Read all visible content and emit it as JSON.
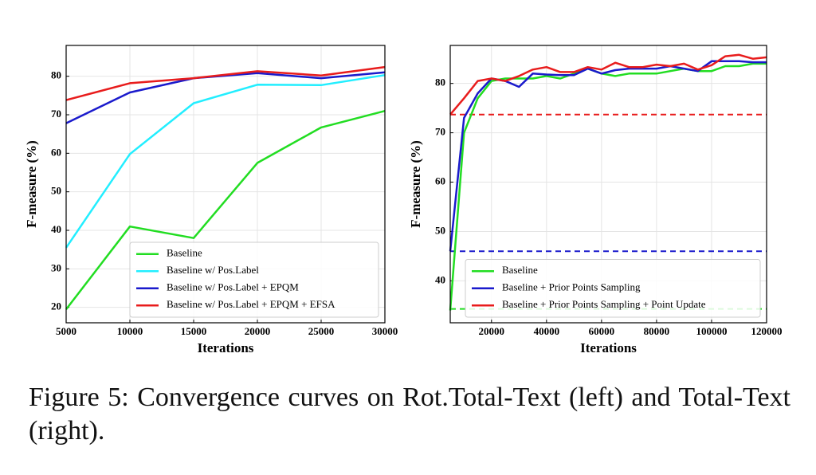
{
  "chart_data": [
    {
      "type": "line",
      "xlabel": "Iterations",
      "ylabel": "F-measure (%)",
      "x": [
        5000,
        10000,
        15000,
        20000,
        25000,
        30000
      ],
      "xlim": [
        5000,
        30000
      ],
      "xticks": [
        5000,
        10000,
        15000,
        20000,
        25000,
        30000
      ],
      "ylim": [
        16,
        88
      ],
      "yticks": [
        20,
        30,
        40,
        50,
        60,
        70,
        80
      ],
      "grid": true,
      "legend": "lower right",
      "series": [
        {
          "name": "Baseline",
          "color": "#22dd22",
          "values": [
            19.5,
            41,
            38,
            57.5,
            66.7,
            71
          ]
        },
        {
          "name": "Baseline w/ Pos.Label",
          "color": "#22eeff",
          "values": [
            35.5,
            59.8,
            73,
            77.8,
            77.7,
            80.3
          ]
        },
        {
          "name": "Baseline w/ Pos.Label + EPQM",
          "color": "#1a1acc",
          "values": [
            67.8,
            75.8,
            79.5,
            80.8,
            79.5,
            81
          ]
        },
        {
          "name": "Baseline w/ Pos.Label + EPQM + EFSA",
          "color": "#e81c1c",
          "values": [
            73.8,
            78.2,
            79.5,
            81.3,
            80.2,
            82.4
          ]
        }
      ]
    },
    {
      "type": "line",
      "xlabel": "Iterations",
      "ylabel": "F-measure (%)",
      "x": [
        5000,
        10000,
        15000,
        20000,
        25000,
        30000,
        35000,
        40000,
        45000,
        50000,
        55000,
        60000,
        65000,
        70000,
        75000,
        80000,
        85000,
        90000,
        95000,
        100000,
        105000,
        110000,
        115000,
        120000
      ],
      "xlim": [
        5000,
        120000
      ],
      "xticks": [
        20000,
        40000,
        60000,
        80000,
        100000,
        120000
      ],
      "ylim": [
        31.5,
        87.7
      ],
      "yticks": [
        40,
        50,
        60,
        70,
        80
      ],
      "grid": true,
      "legend": "lower right",
      "series": [
        {
          "name": "Baseline",
          "color": "#22dd22",
          "values": [
            34,
            70,
            77,
            80.5,
            81,
            81,
            81,
            81.5,
            81,
            82,
            83,
            82,
            81.5,
            82,
            82,
            82,
            82.5,
            83,
            82.5,
            82.5,
            83.5,
            83.5,
            84,
            84
          ]
        },
        {
          "name": "Baseline + Prior Points Sampling",
          "color": "#1a1acc",
          "values": [
            46,
            73,
            78,
            81,
            80.5,
            79.3,
            82,
            81.8,
            81.7,
            81.7,
            83,
            82,
            82.7,
            83,
            83,
            83,
            83.5,
            83,
            82.5,
            84.5,
            84.5,
            84.5,
            84.3,
            84.3
          ]
        },
        {
          "name": "Baseline + Prior Points Sampling + Point Update",
          "color": "#e81c1c",
          "values": [
            73.7,
            77,
            80.5,
            81,
            80.5,
            81.5,
            82.8,
            83.3,
            82.3,
            82.3,
            83.3,
            82.8,
            84.2,
            83.3,
            83.3,
            83.8,
            83.5,
            84,
            82.8,
            83.7,
            85.5,
            85.8,
            85,
            85.3
          ]
        }
      ],
      "hlines": [
        {
          "value": 73.7,
          "color": "#e81c1c"
        },
        {
          "value": 46,
          "color": "#1a1acc"
        },
        {
          "value": 34.3,
          "color": "#22dd22"
        }
      ]
    }
  ],
  "caption": "Figure 5: Convergence curves on Rot.Total-Text (left) and Total-Text (right)."
}
